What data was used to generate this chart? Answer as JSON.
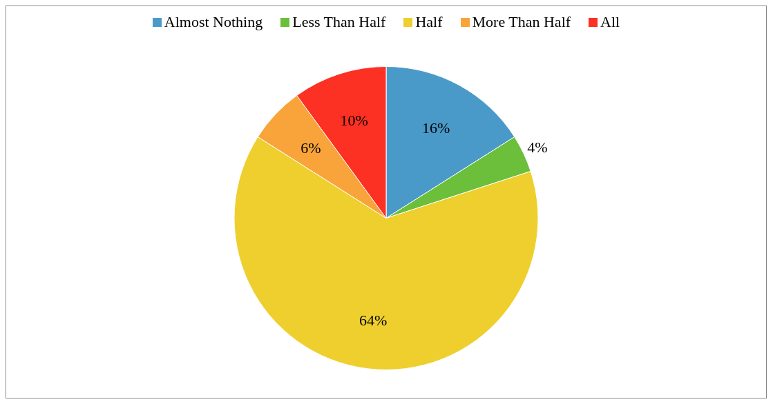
{
  "chart_data": {
    "type": "pie",
    "categories": [
      "Almost Nothing",
      "Less Than Half",
      "Half",
      "More Than Half",
      "All"
    ],
    "values": [
      16,
      4,
      64,
      6,
      10
    ],
    "colors": [
      "#4a9ac9",
      "#6bbf3a",
      "#eecf2e",
      "#f9a43a",
      "#fc3023"
    ],
    "value_labels": [
      "16%",
      "4%",
      "64%",
      "6%",
      "10%"
    ],
    "legend": "top"
  }
}
